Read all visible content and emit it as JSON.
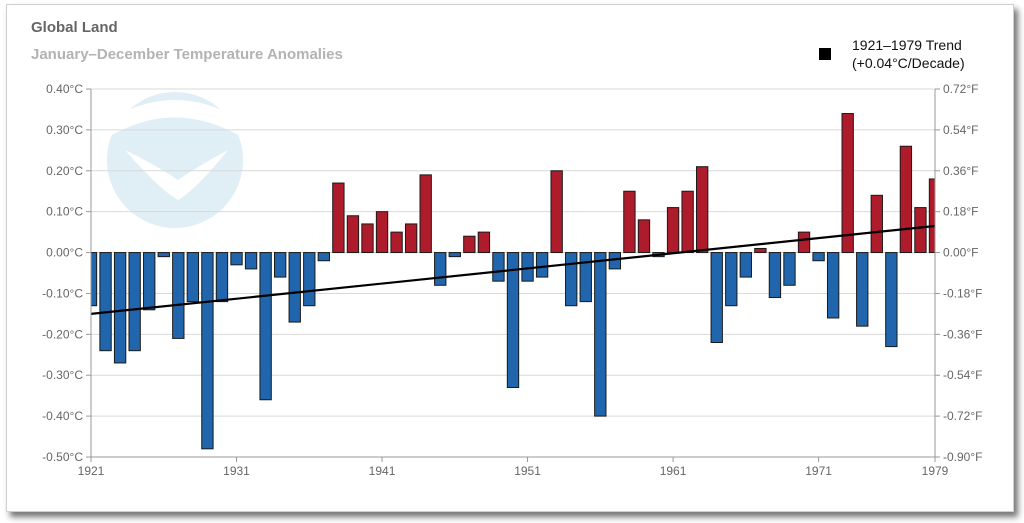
{
  "header": {
    "title": "Global Land",
    "subtitle": "January–December Temperature Anomalies"
  },
  "legend": {
    "line1": "1921–1979 Trend",
    "line2": "(+0.04°C/Decade)"
  },
  "watermark": {
    "text": "NOAA"
  },
  "colors": {
    "positive": "#ae1b2b",
    "negative": "#2166ac",
    "trend": "#000000",
    "grid": "#d9d9d9"
  },
  "chart_data": {
    "type": "bar",
    "title": "Global Land",
    "subtitle": "January–December Temperature Anomalies",
    "x": [
      1921,
      1922,
      1923,
      1924,
      1925,
      1926,
      1927,
      1928,
      1929,
      1930,
      1931,
      1932,
      1933,
      1934,
      1935,
      1936,
      1937,
      1938,
      1939,
      1940,
      1941,
      1942,
      1943,
      1944,
      1945,
      1946,
      1947,
      1948,
      1949,
      1950,
      1951,
      1952,
      1953,
      1954,
      1955,
      1956,
      1957,
      1958,
      1959,
      1960,
      1961,
      1962,
      1963,
      1964,
      1965,
      1966,
      1967,
      1968,
      1969,
      1970,
      1971,
      1972,
      1973,
      1974,
      1975,
      1976,
      1977,
      1978,
      1979
    ],
    "values": [
      -0.13,
      -0.24,
      -0.27,
      -0.24,
      -0.14,
      -0.01,
      -0.21,
      -0.12,
      -0.48,
      -0.12,
      -0.03,
      -0.04,
      -0.36,
      -0.06,
      -0.17,
      -0.13,
      -0.02,
      0.17,
      0.09,
      0.07,
      0.1,
      0.05,
      0.07,
      0.19,
      -0.08,
      -0.01,
      0.04,
      0.05,
      -0.07,
      -0.33,
      -0.07,
      -0.06,
      0.2,
      -0.13,
      -0.12,
      -0.4,
      -0.04,
      0.15,
      0.08,
      -0.01,
      0.11,
      0.15,
      0.21,
      -0.22,
      -0.13,
      -0.06,
      0.01,
      -0.11,
      -0.08,
      0.05,
      -0.02,
      -0.16,
      0.34,
      -0.18,
      0.14,
      -0.23,
      0.26,
      0.11,
      0.18
    ],
    "ylim": [
      -0.5,
      0.4
    ],
    "y_ticks_left": [
      "-0.50°C",
      "-0.40°C",
      "-0.30°C",
      "-0.20°C",
      "-0.10°C",
      "0.00°C",
      "0.10°C",
      "0.20°C",
      "0.30°C",
      "0.40°C"
    ],
    "y_ticks_right": [
      "-0.90°F",
      "-0.72°F",
      "-0.54°F",
      "-0.36°F",
      "-0.18°F",
      "0.00°F",
      "0.18°F",
      "0.36°F",
      "0.54°F",
      "0.72°F"
    ],
    "x_ticks": [
      "1921",
      "1931",
      "1941",
      "1951",
      "1961",
      "1971",
      "1979"
    ],
    "trend": {
      "name": "1921–1979 Trend",
      "start": [
        1921,
        -0.15
      ],
      "end": [
        1979,
        0.065
      ]
    },
    "grid": true,
    "legend_position": "top-right"
  }
}
